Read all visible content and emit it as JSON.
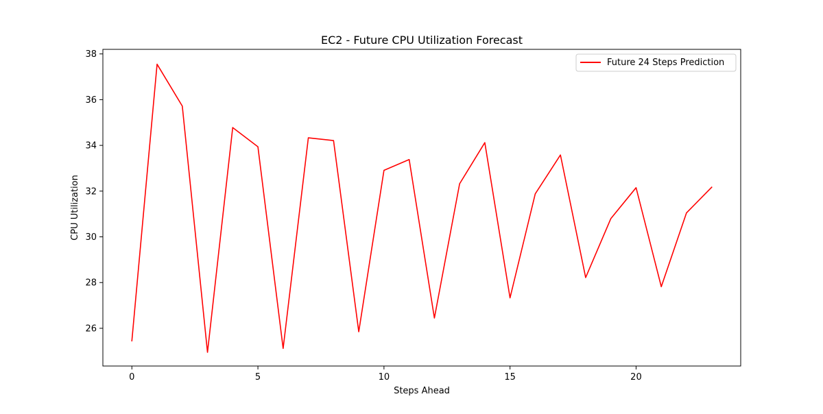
{
  "chart_data": {
    "type": "line",
    "title": "EC2 - Future CPU Utilization Forecast",
    "xlabel": "Steps Ahead",
    "ylabel": "CPU Utilization",
    "xlim": [
      -1.15,
      24.15
    ],
    "ylim": [
      24.35,
      38.2
    ],
    "x_ticks": [
      0,
      5,
      10,
      15,
      20
    ],
    "y_ticks": [
      26,
      28,
      30,
      32,
      34,
      36,
      38
    ],
    "grid": false,
    "legend": {
      "position": "top-right"
    },
    "series": [
      {
        "name": "Future 24 Steps Prediction",
        "color": "#ff0000",
        "x": [
          0,
          1,
          2,
          3,
          4,
          5,
          6,
          7,
          8,
          9,
          10,
          11,
          12,
          13,
          14,
          15,
          16,
          17,
          18,
          19,
          20,
          21,
          22,
          23
        ],
        "y": [
          25.45,
          37.55,
          35.72,
          24.95,
          34.78,
          33.94,
          25.12,
          34.33,
          34.21,
          25.85,
          32.91,
          33.38,
          26.45,
          32.32,
          34.12,
          27.33,
          31.88,
          33.58,
          28.22,
          30.8,
          32.15,
          27.82,
          31.05,
          32.17
        ]
      }
    ]
  }
}
